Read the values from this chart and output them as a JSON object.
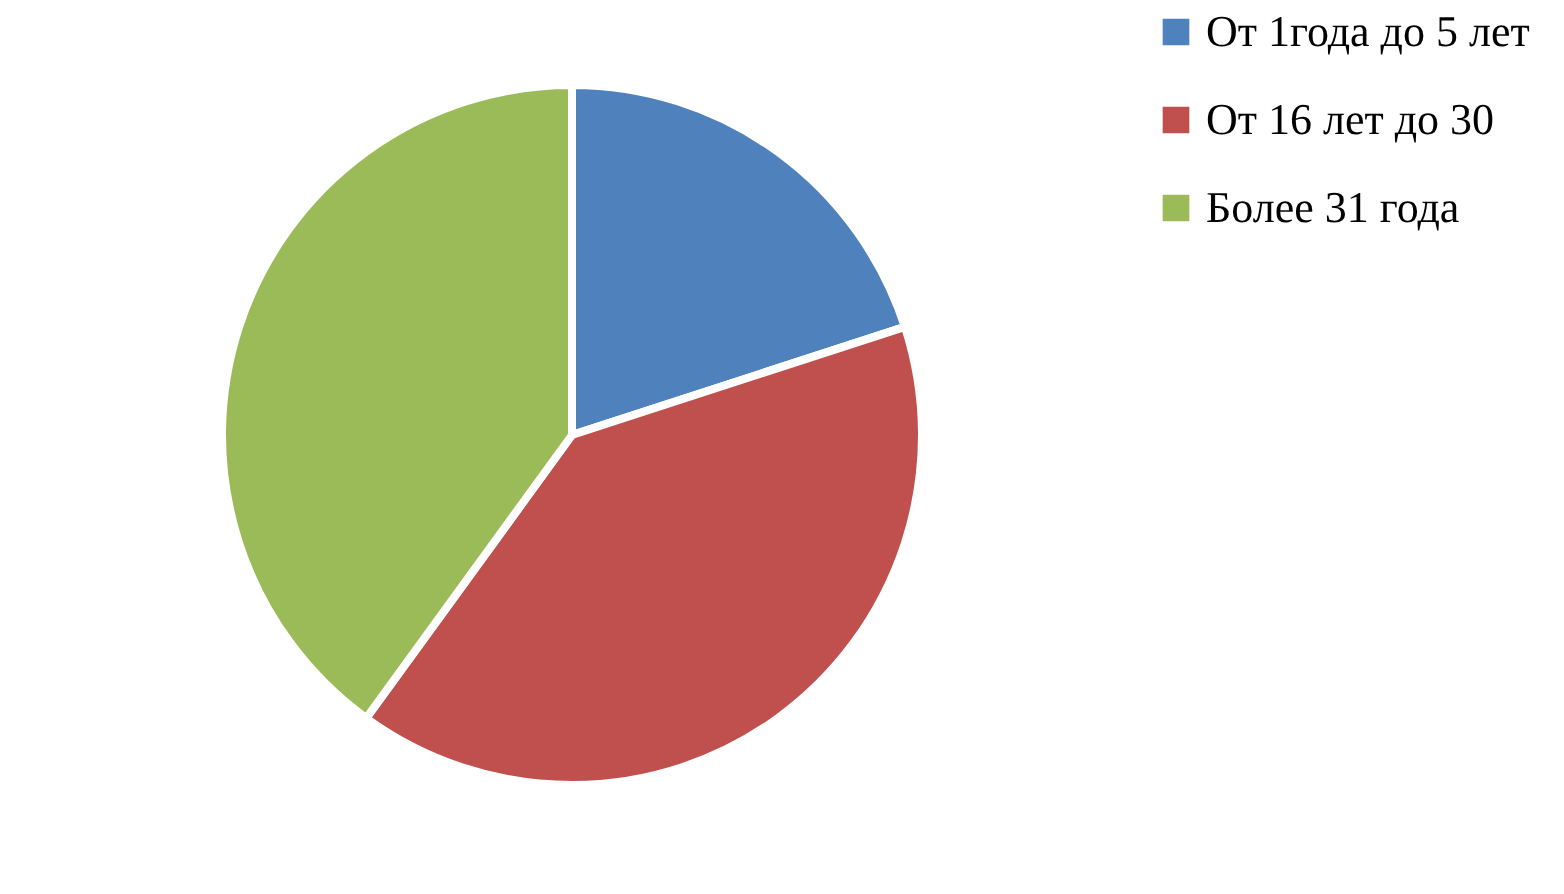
{
  "chart_data": {
    "type": "pie",
    "categories": [
      "От 1года до 5 лет",
      "От 16 лет до 30",
      "Более 31 года"
    ],
    "values": [
      20,
      40,
      40
    ],
    "colors": [
      "#4f81bd",
      "#c0504d",
      "#9bbb59"
    ],
    "legend": "right"
  }
}
